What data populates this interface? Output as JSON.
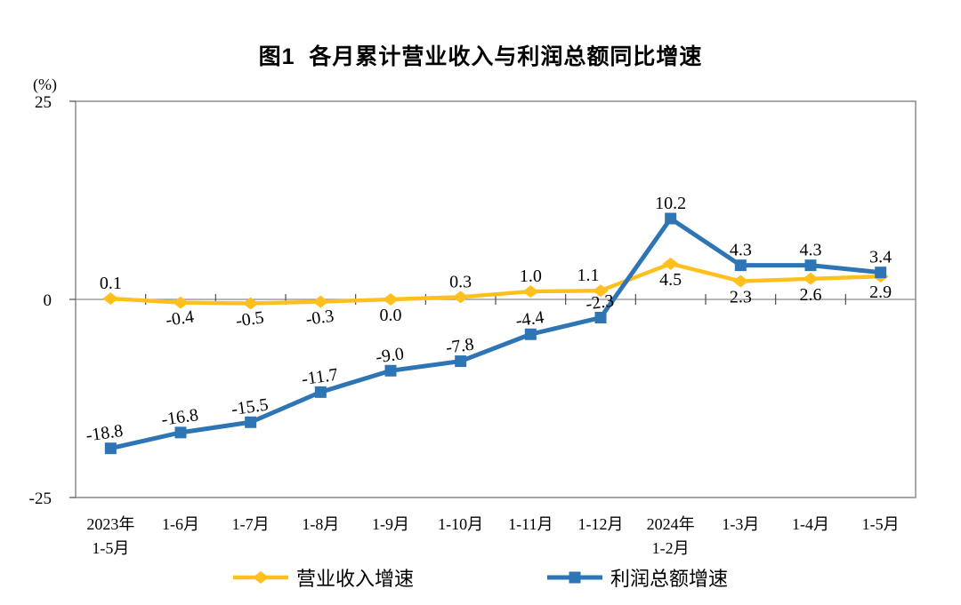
{
  "page": {
    "title": "图1  各月累计营业收入与利润总额同比增速"
  },
  "chart_data": {
    "type": "line",
    "title": "图1  各月累计营业收入与利润总额同比增速",
    "unit_label": "(%)",
    "grid": "zero-line-only",
    "legend_position": "bottom",
    "y_axis": {
      "min": -25,
      "max": 25,
      "ticks": [
        25,
        0,
        -25
      ],
      "tick_labels": [
        "25",
        "0",
        "-25"
      ]
    },
    "categories": [
      "2023年\n1-5月",
      "1-6月",
      "1-7月",
      "1-8月",
      "1-9月",
      "1-10月",
      "1-11月",
      "1-12月",
      "2024年\n1-2月",
      "1-3月",
      "1-4月",
      "1-5月"
    ],
    "series": [
      {
        "name": "营业收入增速",
        "color": "#FFC01E",
        "marker": "diamond",
        "values": [
          0.1,
          -0.4,
          -0.5,
          -0.3,
          0.0,
          0.3,
          1.0,
          1.1,
          4.5,
          2.3,
          2.6,
          2.9
        ],
        "labels": [
          "0.1",
          "-0.4",
          "-0.5",
          "-0.3",
          "0.0",
          "0.3",
          "1.0",
          "1.1",
          "4.5",
          "2.3",
          "2.6",
          "2.9"
        ],
        "label_positions": [
          "above",
          "below",
          "below",
          "below",
          "below",
          "above",
          "above",
          "above",
          "below",
          "below",
          "below",
          "below"
        ],
        "label_dx": [
          0,
          0,
          0,
          0,
          0,
          0,
          0,
          -14,
          0,
          0,
          0,
          0
        ]
      },
      {
        "name": "利润总额增速",
        "color": "#2E75B6",
        "marker": "square",
        "values": [
          -18.8,
          -16.8,
          -15.5,
          -11.7,
          -9.0,
          -7.8,
          -4.4,
          -2.3,
          10.2,
          4.3,
          4.3,
          3.4
        ],
        "labels": [
          "-18.8",
          "-16.8",
          "-15.5",
          "-11.7",
          "-9.0",
          "-7.8",
          "-4.4",
          "-2.3",
          "10.2",
          "4.3",
          "4.3",
          "3.4"
        ],
        "label_positions": [
          "above",
          "above",
          "above",
          "above",
          "above",
          "above",
          "above",
          "above",
          "above",
          "above",
          "above",
          "above"
        ],
        "label_dx": [
          -6,
          0,
          0,
          0,
          0,
          0,
          0,
          0,
          0,
          0,
          0,
          0
        ]
      }
    ]
  }
}
